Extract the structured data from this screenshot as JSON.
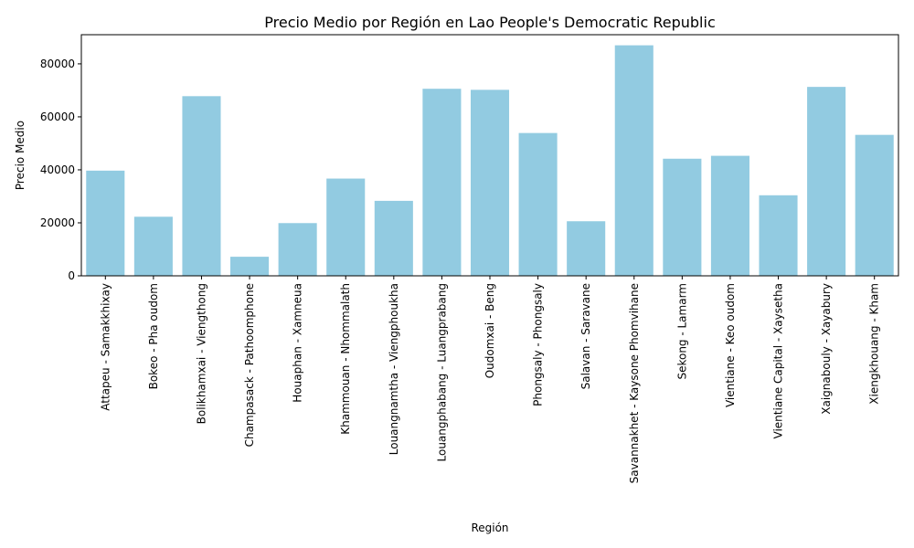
{
  "chart_data": {
    "type": "bar",
    "title": "Precio Medio por Región en Lao People's Democratic Republic",
    "xlabel": "Región",
    "ylabel": "Precio Medio",
    "ylim": [
      0,
      91000
    ],
    "yticks": [
      0,
      20000,
      40000,
      60000,
      80000
    ],
    "grid": false,
    "bar_color": "#92cbe1",
    "categories": [
      "Attapeu - Samakkhixay",
      "Bokeo - Pha oudom",
      "Bolikhamxai - Viengthong",
      "Champasack - Pathoomphone",
      "Houaphan - Xamneua",
      "Khammouan - Nhommalath",
      "Louangnamtha - Viengphoukha",
      "Louangphabang - Luangprabang",
      "Oudomxai - Beng",
      "Phongsaly - Phongsaly",
      "Salavan - Saravane",
      "Savannakhet - Kaysone Phomvihane",
      "Sekong - Lamarm",
      "Vientiane - Keo oudom",
      "Vientiane Capital - Xaysetha",
      "Xaignabouly - Xayabury",
      "Xiengkhouang - Kham"
    ],
    "values": [
      39700,
      22300,
      67800,
      7200,
      19900,
      36700,
      28300,
      70600,
      70200,
      53900,
      20600,
      87000,
      44200,
      45300,
      30400,
      71300,
      53200
    ]
  }
}
